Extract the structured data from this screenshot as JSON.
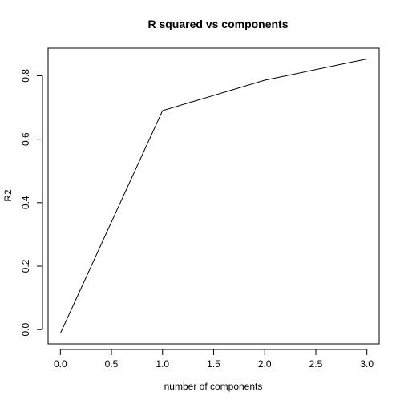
{
  "chart_data": {
    "type": "line",
    "title": "R squared vs components",
    "xlabel": "number of components",
    "ylabel": "R2",
    "xlim": [
      -0.12,
      3.12
    ],
    "ylim": [
      -0.045,
      0.887
    ],
    "xticks": [
      0,
      0.5,
      1,
      1.5,
      2,
      2.5,
      3
    ],
    "xtick_labels": [
      "0.0",
      "0.5",
      "1.0",
      "1.5",
      "2.0",
      "2.5",
      "3.0"
    ],
    "yticks": [
      0,
      0.2,
      0.4,
      0.6,
      0.8
    ],
    "ytick_labels": [
      "0.0",
      "0.2",
      "0.4",
      "0.6",
      "0.8"
    ],
    "x": [
      0,
      1,
      2,
      3
    ],
    "y": [
      -0.012,
      0.69,
      0.786,
      0.853
    ],
    "grid": false,
    "series_color": "#000000"
  }
}
